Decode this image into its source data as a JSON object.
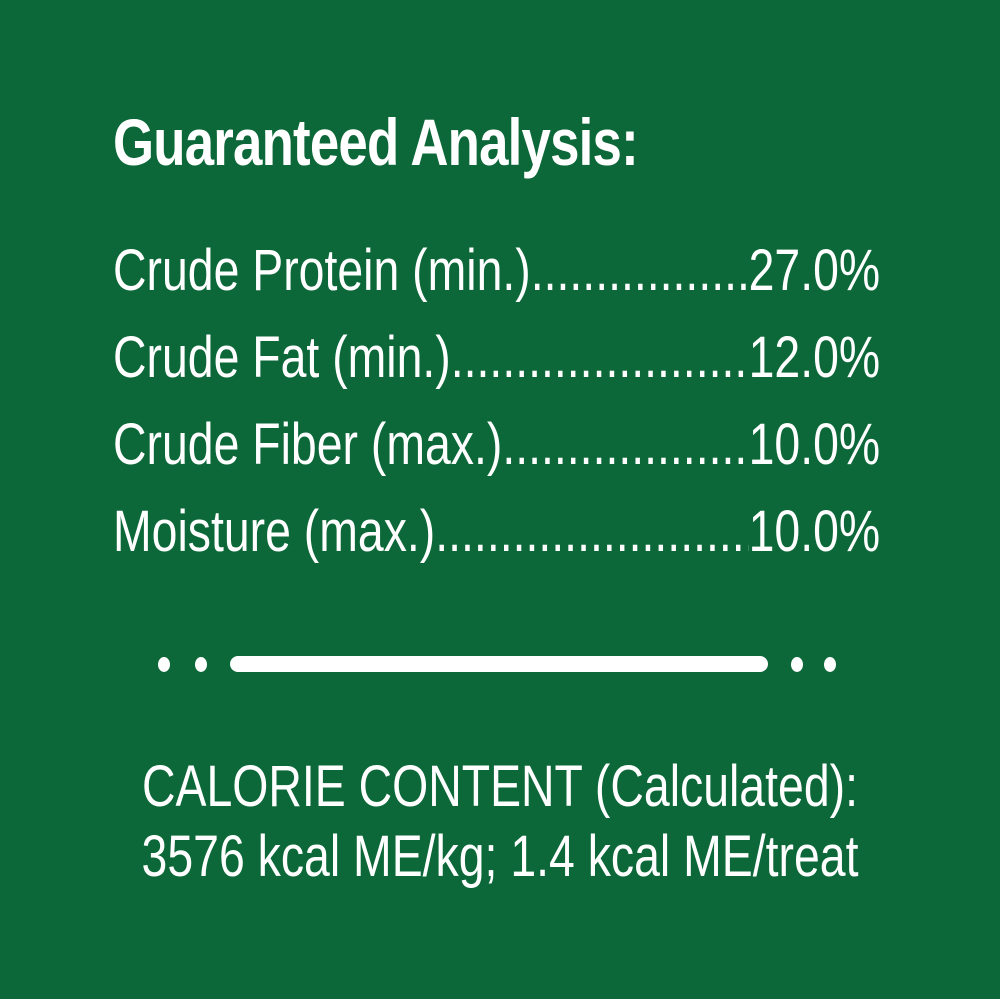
{
  "title": "Guaranteed Analysis:",
  "rows": [
    {
      "label": "Crude Protein (min.)",
      "value": "27.0%"
    },
    {
      "label": "Crude Fat (min.)",
      "value": "12.0%"
    },
    {
      "label": "Crude Fiber (max.)",
      "value": "10.0%"
    },
    {
      "label": "Moisture (max.)",
      "value": "10.0%"
    }
  ],
  "calorie": {
    "line1": "CALORIE CONTENT (Calculated):",
    "line2": "3576 kcal ME/kg; 1.4 kcal ME/treat"
  },
  "colors": {
    "background": "#0c6838",
    "text": "#ffffff"
  }
}
